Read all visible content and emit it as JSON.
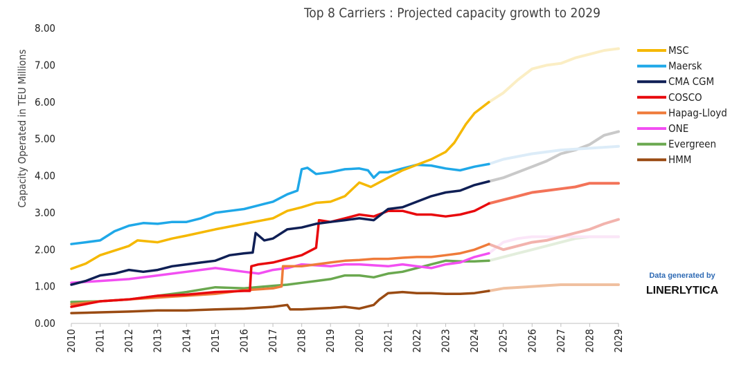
{
  "chart_data": {
    "type": "line",
    "title": "Top 8 Carriers : Projected capacity growth to 2029",
    "ylabel": "Capacity Operated in TEU Millions",
    "xlabel": "",
    "ylim": [
      0,
      8
    ],
    "xlim": [
      2010,
      2029
    ],
    "yticks": [
      "0.00",
      "1.00",
      "2.00",
      "3.00",
      "4.00",
      "5.00",
      "6.00",
      "7.00",
      "8.00"
    ],
    "xticks": [
      "2010",
      "2011",
      "2012",
      "2013",
      "2014",
      "2015",
      "2016",
      "2017",
      "2018",
      "2019",
      "2020",
      "2021",
      "2022",
      "2023",
      "2024",
      "2025",
      "2026",
      "2027",
      "2028",
      "2029"
    ],
    "actual_until": 2024.5,
    "legend_position": "right",
    "grid": false,
    "series": [
      {
        "name": "MSC",
        "color": "#f5b800",
        "projected_color": "#fbeec4",
        "points": [
          [
            2010,
            1.48
          ],
          [
            2010.5,
            1.62
          ],
          [
            2011,
            1.85
          ],
          [
            2012,
            2.1
          ],
          [
            2012.3,
            2.25
          ],
          [
            2013,
            2.2
          ],
          [
            2013.5,
            2.3
          ],
          [
            2014,
            2.38
          ],
          [
            2015,
            2.55
          ],
          [
            2016,
            2.7
          ],
          [
            2017,
            2.85
          ],
          [
            2017.5,
            3.05
          ],
          [
            2018,
            3.15
          ],
          [
            2018.5,
            3.27
          ],
          [
            2019,
            3.3
          ],
          [
            2019.5,
            3.45
          ],
          [
            2020,
            3.82
          ],
          [
            2020.4,
            3.7
          ],
          [
            2021,
            3.95
          ],
          [
            2021.5,
            4.15
          ],
          [
            2022,
            4.3
          ],
          [
            2022.5,
            4.45
          ],
          [
            2023,
            4.65
          ],
          [
            2023.3,
            4.9
          ],
          [
            2023.7,
            5.4
          ],
          [
            2024,
            5.7
          ],
          [
            2024.5,
            6.0
          ],
          [
            2025,
            6.25
          ],
          [
            2025.5,
            6.6
          ],
          [
            2026,
            6.9
          ],
          [
            2026.5,
            7.0
          ],
          [
            2027,
            7.05
          ],
          [
            2027.5,
            7.2
          ],
          [
            2028,
            7.3
          ],
          [
            2028.5,
            7.4
          ],
          [
            2029,
            7.45
          ]
        ]
      },
      {
        "name": "Maersk",
        "color": "#1fa8e8",
        "projected_color": "#dcecf8",
        "points": [
          [
            2010,
            2.15
          ],
          [
            2010.5,
            2.2
          ],
          [
            2011,
            2.25
          ],
          [
            2011.5,
            2.5
          ],
          [
            2012,
            2.65
          ],
          [
            2012.5,
            2.72
          ],
          [
            2013,
            2.7
          ],
          [
            2013.5,
            2.75
          ],
          [
            2014,
            2.75
          ],
          [
            2014.5,
            2.85
          ],
          [
            2015,
            3.0
          ],
          [
            2015.5,
            3.05
          ],
          [
            2016,
            3.1
          ],
          [
            2016.5,
            3.2
          ],
          [
            2017,
            3.3
          ],
          [
            2017.5,
            3.5
          ],
          [
            2017.85,
            3.6
          ],
          [
            2018,
            4.18
          ],
          [
            2018.2,
            4.22
          ],
          [
            2018.5,
            4.05
          ],
          [
            2019,
            4.1
          ],
          [
            2019.5,
            4.18
          ],
          [
            2020,
            4.2
          ],
          [
            2020.3,
            4.15
          ],
          [
            2020.5,
            3.95
          ],
          [
            2020.7,
            4.1
          ],
          [
            2021,
            4.1
          ],
          [
            2021.5,
            4.2
          ],
          [
            2022,
            4.3
          ],
          [
            2022.5,
            4.28
          ],
          [
            2023,
            4.2
          ],
          [
            2023.5,
            4.15
          ],
          [
            2024,
            4.25
          ],
          [
            2024.5,
            4.32
          ],
          [
            2025,
            4.45
          ],
          [
            2026,
            4.6
          ],
          [
            2027,
            4.7
          ],
          [
            2028,
            4.75
          ],
          [
            2029,
            4.8
          ]
        ]
      },
      {
        "name": "CMA CGM",
        "color": "#0f1f55",
        "projected_color": "#c9c9c9",
        "points": [
          [
            2010,
            1.05
          ],
          [
            2010.5,
            1.15
          ],
          [
            2011,
            1.3
          ],
          [
            2011.5,
            1.35
          ],
          [
            2012,
            1.45
          ],
          [
            2012.5,
            1.4
          ],
          [
            2013,
            1.45
          ],
          [
            2013.5,
            1.55
          ],
          [
            2014,
            1.6
          ],
          [
            2014.5,
            1.65
          ],
          [
            2015,
            1.7
          ],
          [
            2015.5,
            1.85
          ],
          [
            2016,
            1.9
          ],
          [
            2016.3,
            1.92
          ],
          [
            2016.4,
            2.45
          ],
          [
            2016.7,
            2.25
          ],
          [
            2017,
            2.3
          ],
          [
            2017.5,
            2.55
          ],
          [
            2018,
            2.6
          ],
          [
            2018.5,
            2.7
          ],
          [
            2019,
            2.75
          ],
          [
            2019.5,
            2.8
          ],
          [
            2020,
            2.85
          ],
          [
            2020.5,
            2.8
          ],
          [
            2021,
            3.1
          ],
          [
            2021.5,
            3.15
          ],
          [
            2022,
            3.3
          ],
          [
            2022.5,
            3.45
          ],
          [
            2023,
            3.55
          ],
          [
            2023.5,
            3.6
          ],
          [
            2024,
            3.75
          ],
          [
            2024.5,
            3.85
          ],
          [
            2025,
            3.95
          ],
          [
            2025.5,
            4.1
          ],
          [
            2026,
            4.25
          ],
          [
            2026.5,
            4.4
          ],
          [
            2027,
            4.6
          ],
          [
            2027.5,
            4.7
          ],
          [
            2028,
            4.85
          ],
          [
            2028.5,
            5.1
          ],
          [
            2029,
            5.2
          ]
        ]
      },
      {
        "name": "COSCO",
        "color": "#e8090d",
        "projected_color": "#f37358",
        "points": [
          [
            2010,
            0.45
          ],
          [
            2011,
            0.6
          ],
          [
            2012,
            0.65
          ],
          [
            2013,
            0.75
          ],
          [
            2014,
            0.78
          ],
          [
            2015,
            0.85
          ],
          [
            2016,
            0.88
          ],
          [
            2016.2,
            0.88
          ],
          [
            2016.25,
            1.55
          ],
          [
            2016.5,
            1.6
          ],
          [
            2017,
            1.65
          ],
          [
            2017.5,
            1.75
          ],
          [
            2018,
            1.85
          ],
          [
            2018.5,
            2.05
          ],
          [
            2018.6,
            2.8
          ],
          [
            2019,
            2.75
          ],
          [
            2019.5,
            2.85
          ],
          [
            2020,
            2.95
          ],
          [
            2020.5,
            2.9
          ],
          [
            2021,
            3.05
          ],
          [
            2021.5,
            3.05
          ],
          [
            2022,
            2.95
          ],
          [
            2022.5,
            2.95
          ],
          [
            2023,
            2.9
          ],
          [
            2023.5,
            2.95
          ],
          [
            2024,
            3.05
          ],
          [
            2024.5,
            3.25
          ],
          [
            2025,
            3.35
          ],
          [
            2025.5,
            3.45
          ],
          [
            2026,
            3.55
          ],
          [
            2026.5,
            3.6
          ],
          [
            2027,
            3.65
          ],
          [
            2027.5,
            3.7
          ],
          [
            2028,
            3.8
          ],
          [
            2029,
            3.8
          ]
        ]
      },
      {
        "name": "Hapag-Lloyd",
        "color": "#ef7b3a",
        "projected_color": "#f2b3ad",
        "points": [
          [
            2010,
            0.52
          ],
          [
            2011,
            0.6
          ],
          [
            2012,
            0.65
          ],
          [
            2013,
            0.7
          ],
          [
            2014,
            0.75
          ],
          [
            2015,
            0.8
          ],
          [
            2016,
            0.9
          ],
          [
            2017,
            0.95
          ],
          [
            2017.3,
            1.0
          ],
          [
            2017.35,
            1.55
          ],
          [
            2018,
            1.55
          ],
          [
            2018.5,
            1.6
          ],
          [
            2019,
            1.65
          ],
          [
            2019.5,
            1.7
          ],
          [
            2020,
            1.72
          ],
          [
            2020.5,
            1.75
          ],
          [
            2021,
            1.75
          ],
          [
            2021.5,
            1.78
          ],
          [
            2022,
            1.8
          ],
          [
            2022.5,
            1.8
          ],
          [
            2023,
            1.85
          ],
          [
            2023.5,
            1.9
          ],
          [
            2024,
            2.0
          ],
          [
            2024.5,
            2.15
          ],
          [
            2025,
            2.0
          ],
          [
            2025.5,
            2.1
          ],
          [
            2026,
            2.2
          ],
          [
            2026.5,
            2.25
          ],
          [
            2027,
            2.35
          ],
          [
            2027.5,
            2.45
          ],
          [
            2028,
            2.55
          ],
          [
            2028.5,
            2.7
          ],
          [
            2029,
            2.82
          ]
        ]
      },
      {
        "name": "ONE",
        "color": "#f24ff2",
        "projected_color": "#fbe6f8",
        "points": [
          [
            2010,
            1.1
          ],
          [
            2011,
            1.15
          ],
          [
            2012,
            1.2
          ],
          [
            2013,
            1.3
          ],
          [
            2014,
            1.4
          ],
          [
            2015,
            1.5
          ],
          [
            2016,
            1.4
          ],
          [
            2016.5,
            1.35
          ],
          [
            2017,
            1.45
          ],
          [
            2017.5,
            1.5
          ],
          [
            2018,
            1.6
          ],
          [
            2019,
            1.55
          ],
          [
            2019.5,
            1.6
          ],
          [
            2020,
            1.6
          ],
          [
            2021,
            1.55
          ],
          [
            2021.5,
            1.6
          ],
          [
            2022,
            1.55
          ],
          [
            2022.5,
            1.5
          ],
          [
            2023,
            1.6
          ],
          [
            2023.5,
            1.65
          ],
          [
            2024,
            1.8
          ],
          [
            2024.5,
            1.9
          ],
          [
            2025,
            2.2
          ],
          [
            2025.5,
            2.3
          ],
          [
            2026,
            2.35
          ],
          [
            2027,
            2.35
          ],
          [
            2028,
            2.35
          ],
          [
            2029,
            2.35
          ]
        ]
      },
      {
        "name": "Evergreen",
        "color": "#6aa84f",
        "projected_color": "#e3eedc",
        "points": [
          [
            2010,
            0.58
          ],
          [
            2011,
            0.6
          ],
          [
            2012,
            0.65
          ],
          [
            2013,
            0.75
          ],
          [
            2014,
            0.85
          ],
          [
            2015,
            0.98
          ],
          [
            2016,
            0.95
          ],
          [
            2017,
            1.02
          ],
          [
            2017.5,
            1.05
          ],
          [
            2018,
            1.1
          ],
          [
            2018.5,
            1.15
          ],
          [
            2019,
            1.2
          ],
          [
            2019.5,
            1.3
          ],
          [
            2020,
            1.3
          ],
          [
            2020.5,
            1.25
          ],
          [
            2021,
            1.35
          ],
          [
            2021.5,
            1.4
          ],
          [
            2022,
            1.5
          ],
          [
            2022.5,
            1.6
          ],
          [
            2023,
            1.7
          ],
          [
            2023.5,
            1.68
          ],
          [
            2024,
            1.68
          ],
          [
            2024.5,
            1.7
          ],
          [
            2025,
            1.8
          ],
          [
            2025.5,
            1.9
          ],
          [
            2026,
            2.0
          ],
          [
            2026.5,
            2.1
          ],
          [
            2027,
            2.2
          ],
          [
            2027.5,
            2.3
          ],
          [
            2028,
            2.35
          ],
          [
            2029,
            2.35
          ]
        ]
      },
      {
        "name": "HMM",
        "color": "#9a4b13",
        "projected_color": "#f0c0a0",
        "points": [
          [
            2010,
            0.28
          ],
          [
            2011,
            0.3
          ],
          [
            2012,
            0.32
          ],
          [
            2013,
            0.35
          ],
          [
            2014,
            0.35
          ],
          [
            2015,
            0.38
          ],
          [
            2016,
            0.4
          ],
          [
            2017,
            0.45
          ],
          [
            2017.5,
            0.5
          ],
          [
            2017.6,
            0.38
          ],
          [
            2018,
            0.38
          ],
          [
            2018.5,
            0.4
          ],
          [
            2019,
            0.42
          ],
          [
            2019.5,
            0.45
          ],
          [
            2020,
            0.4
          ],
          [
            2020.5,
            0.5
          ],
          [
            2020.7,
            0.65
          ],
          [
            2021,
            0.82
          ],
          [
            2021.5,
            0.85
          ],
          [
            2022,
            0.82
          ],
          [
            2022.5,
            0.82
          ],
          [
            2023,
            0.8
          ],
          [
            2023.5,
            0.8
          ],
          [
            2024,
            0.82
          ],
          [
            2024.5,
            0.88
          ],
          [
            2025,
            0.95
          ],
          [
            2026,
            1.0
          ],
          [
            2027,
            1.05
          ],
          [
            2028,
            1.05
          ],
          [
            2029,
            1.05
          ]
        ]
      }
    ]
  },
  "credit": {
    "line1": "Data generated by",
    "line2": "LINERLYTICA"
  }
}
